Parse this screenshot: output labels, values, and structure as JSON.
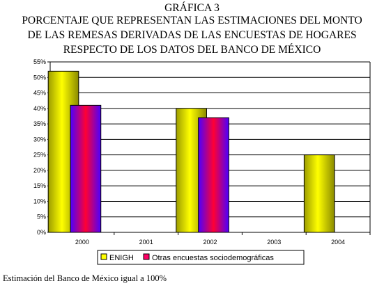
{
  "heading": {
    "line1": "GRÁFICA 3",
    "line2": "PORCENTAJE QUE REPRESENTAN LAS ESTIMACIONES DEL MONTO",
    "line3": "DE LAS REMESAS DERIVADAS DE LAS ENCUESTAS DE HOGARES",
    "line4": "RESPECTO DE LOS DATOS DEL BANCO DE MÉXICO"
  },
  "footnote": "Estimación del Banco de México igual a 100%",
  "chart_data": {
    "type": "bar",
    "categories": [
      "2000",
      "2001",
      "2002",
      "2003",
      "2004"
    ],
    "series": [
      {
        "name": "ENIGH",
        "values": [
          52,
          null,
          40,
          null,
          25
        ],
        "color": "#ffff00"
      },
      {
        "name": "Otras encuestas sociodemográficas",
        "values": [
          41,
          null,
          37,
          null,
          null
        ],
        "color": "#ff0066"
      }
    ],
    "y_ticks": [
      "0%",
      "5%",
      "10%",
      "15%",
      "20%",
      "25%",
      "30%",
      "35%",
      "40%",
      "45%",
      "50%",
      "55%"
    ],
    "ylim": [
      0,
      55
    ],
    "grid": true,
    "legend_position": "bottom"
  }
}
